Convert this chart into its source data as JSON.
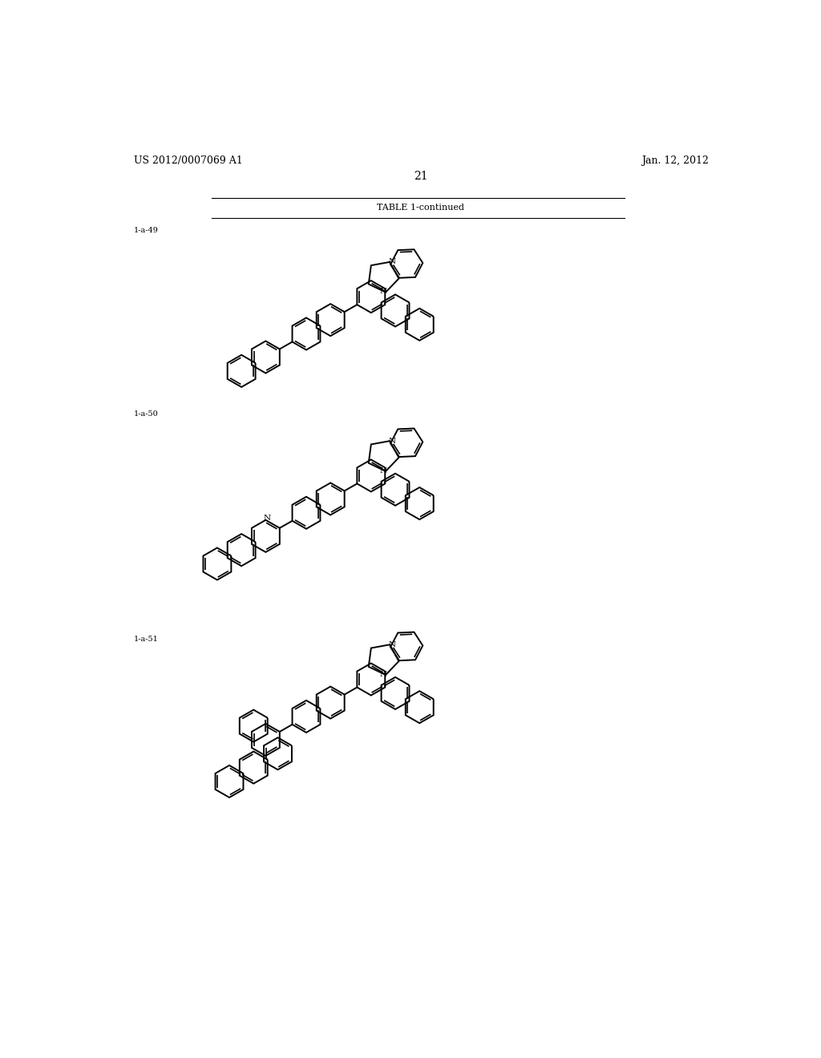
{
  "background_color": "#ffffff",
  "page_header_left": "US 2012/0007069 A1",
  "page_header_right": "Jan. 12, 2012",
  "page_number": "21",
  "table_title": "TABLE 1-continued",
  "label_49": "1-a-49",
  "label_50": "1-a-50",
  "label_51": "1-a-51",
  "line_color": "#000000",
  "line_width": 1.4,
  "font_family": "serif",
  "header_font_size": 9,
  "label_font_size": 7,
  "table_title_font_size": 8
}
